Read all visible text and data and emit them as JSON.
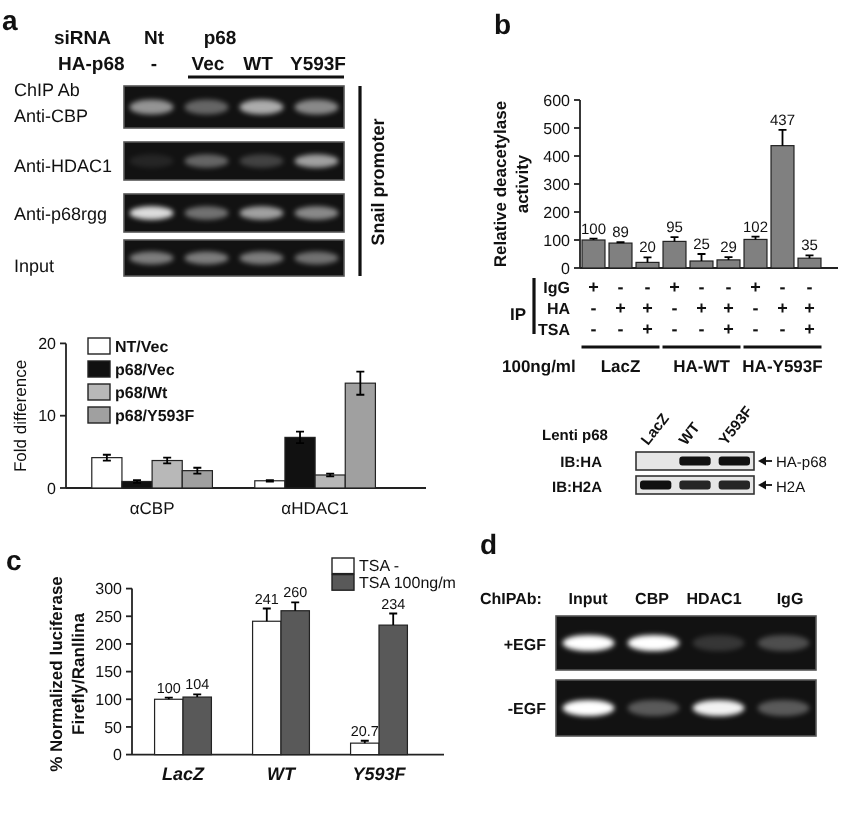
{
  "chart_data": [
    {
      "type": "other",
      "title": "a",
      "annotations": [
        "siRNA",
        "Nt",
        "p68",
        "HA-p68",
        "-",
        "Vec",
        "WT",
        "Y593F",
        "ChIP Ab",
        "Anti-CBP",
        "Anti-HDAC1",
        "Anti-p68rgg",
        "Input",
        "Snail promoter"
      ]
    },
    {
      "type": "bar",
      "categories": [
        "αCBP",
        "αHDAC1"
      ],
      "series": [
        {
          "name": "NT/Vec",
          "color": "#ffffff",
          "values": [
            4.2,
            1.0
          ],
          "errors": [
            0.4,
            0.1
          ]
        },
        {
          "name": "p68/Vec",
          "color": "#111111",
          "values": [
            0.9,
            7.0
          ],
          "errors": [
            0.2,
            0.8
          ]
        },
        {
          "name": "p68/Wt",
          "color": "#b8b8b8",
          "values": [
            3.8,
            1.8
          ],
          "errors": [
            0.4,
            0.2
          ]
        },
        {
          "name": "p68/Y593F",
          "color": "#a0a0a0",
          "values": [
            2.4,
            14.5
          ],
          "errors": [
            0.4,
            1.6
          ]
        }
      ],
      "ylim": [
        0,
        20
      ],
      "yticks": [
        0,
        10,
        20
      ],
      "ylabel": "Fold difference",
      "legend": "top left"
    },
    {
      "type": "bar",
      "title": "b",
      "categories": [
        "+\n-\n-",
        "-\n+\n-",
        "-\n+\n+",
        "+\n-\n-",
        "-\n+\n-",
        "-\n+\n+",
        "+\n-\n-",
        "-\n+\n-",
        "-\n+\n+"
      ],
      "values": [
        100,
        89,
        20,
        95,
        25,
        29,
        102,
        437,
        35
      ],
      "errors": [
        [
          100,
          105
        ],
        [
          89,
          92
        ],
        [
          20,
          38
        ],
        [
          95,
          110
        ],
        [
          25,
          50
        ],
        [
          29,
          39
        ],
        [
          102,
          112
        ],
        [
          437,
          493
        ],
        [
          35,
          45
        ]
      ],
      "color": "#808080",
      "ylim": [
        0,
        600
      ],
      "yticks": [
        0,
        100,
        200,
        300,
        400,
        500,
        600
      ],
      "ylabel": "Relative deacetylase\nactivity",
      "data_labels": true,
      "annotations": [
        "IP",
        "IgG",
        "HA",
        "TSA",
        "100ng/ml",
        "LacZ",
        "HA-WT",
        "HA-Y593F"
      ]
    },
    {
      "type": "other",
      "annotations": [
        "Lenti p68",
        "LacZ",
        "WT",
        "Y593F",
        "IB:HA",
        "IB:H2A",
        "HA-p68",
        "H2A"
      ]
    },
    {
      "type": "bar",
      "title": "c",
      "categories": [
        "LacZ",
        "WT",
        "Y593F"
      ],
      "series": [
        {
          "name": "TSA -",
          "color": "#ffffff",
          "values": [
            100,
            241,
            20.7
          ],
          "errors": [
            [
              100,
              103
            ],
            [
              241,
              264
            ],
            [
              20.7,
              25
            ]
          ]
        },
        {
          "name": "TSA 100ng/m",
          "color": "#595959",
          "values": [
            104,
            260,
            234
          ],
          "errors": [
            [
              104,
              109
            ],
            [
              260,
              275
            ],
            [
              234,
              255
            ]
          ]
        }
      ],
      "ylim": [
        0,
        300
      ],
      "yticks": [
        0,
        50,
        100,
        150,
        200,
        250,
        300
      ],
      "ylabel": "% Normalized luciferase\nFirefly/Ranllina",
      "legend": "top right",
      "data_labels": true
    },
    {
      "type": "other",
      "title": "d",
      "annotations": [
        "ChIPAb:",
        "Input",
        "CBP",
        "HDAC1",
        "IgG",
        "+EGF",
        "-EGF"
      ]
    }
  ]
}
